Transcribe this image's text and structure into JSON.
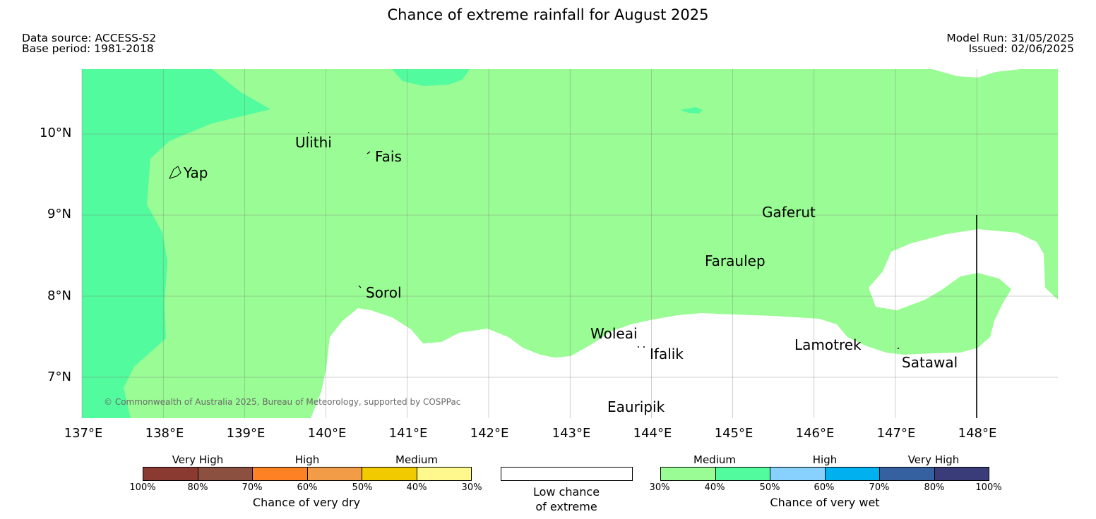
{
  "header": {
    "title": "Chance of extreme rainfall for August 2025",
    "data_source": "Data source: ACCESS-S2",
    "base_period": "Base period: 1981-2018",
    "model_run": "Model Run: 31/05/2025",
    "issued": "Issued: 02/06/2025"
  },
  "map": {
    "lon_ticks": [
      "137°E",
      "138°E",
      "139°E",
      "140°E",
      "141°E",
      "142°E",
      "143°E",
      "144°E",
      "145°E",
      "146°E",
      "147°E",
      "148°E"
    ],
    "lat_ticks": [
      "10°N",
      "9°N",
      "8°N",
      "7°N"
    ],
    "places": [
      "Ulithi",
      "Fais",
      "Yap",
      "Gaferut",
      "Faraulep",
      "Sorol",
      "Woleai",
      "Ifalik",
      "Lamotrek",
      "Satawal",
      "Eauripik"
    ],
    "copyright": "© Commonwealth of Australia 2025, Bureau of Meteorology, supported by COSPPac",
    "colors": {
      "wet_medium_30_40": "#9afc94",
      "wet_medium_40_50": "#52fb9d",
      "low_chance": "#ffffff",
      "grid": "#7a7a7a"
    }
  },
  "legend": {
    "dry": {
      "labels": [
        "Very High",
        "High",
        "Medium"
      ],
      "ticks": [
        "100%",
        "80%",
        "70%",
        "60%",
        "50%",
        "40%",
        "30%"
      ],
      "colors": [
        "#8b3a32",
        "#8c5040",
        "#fe8124",
        "#f29c48",
        "#f1cb00",
        "#fff98d"
      ],
      "caption": "Chance of very dry"
    },
    "low": {
      "caption_line1": "Low chance",
      "caption_line2": "of extreme"
    },
    "wet": {
      "labels": [
        "Medium",
        "High",
        "Very High"
      ],
      "ticks": [
        "30%",
        "40%",
        "50%",
        "60%",
        "70%",
        "80%",
        "100%"
      ],
      "colors": [
        "#9afc94",
        "#52fb9d",
        "#88d0fd",
        "#00b0ef",
        "#3561a1",
        "#3a3c79"
      ],
      "caption": "Chance of very wet"
    }
  }
}
